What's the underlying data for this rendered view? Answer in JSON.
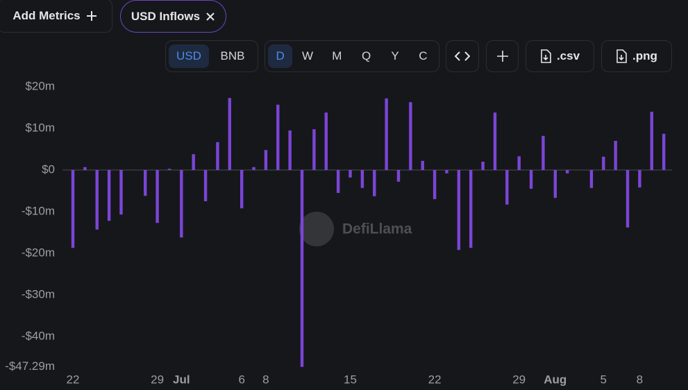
{
  "ui": {
    "add_metrics": "Add Metrics",
    "metric_tab": "USD Inflows",
    "denomination": [
      "USD",
      "BNB"
    ],
    "periods": [
      "D",
      "W",
      "M",
      "Q",
      "Y",
      "C"
    ],
    "downloads": [
      ".csv",
      ".png"
    ],
    "watermark": "DefiLlama"
  },
  "chart_data": {
    "type": "bar",
    "color": "#7b45d6",
    "categories": [
      "22",
      null,
      null,
      null,
      null,
      null,
      null,
      "29",
      null,
      "Jul",
      null,
      null,
      null,
      null,
      "6",
      null,
      "8",
      null,
      null,
      null,
      null,
      null,
      null,
      "15",
      null,
      null,
      null,
      null,
      null,
      null,
      "22",
      null,
      null,
      null,
      null,
      null,
      null,
      "29",
      null,
      null,
      "Aug",
      null,
      null,
      null,
      "5",
      null,
      null,
      "8",
      null,
      null
    ],
    "values": [
      -18.7,
      0.7,
      -14.3,
      -12.2,
      -10.7,
      0,
      -6.2,
      -12.7,
      0.3,
      -16.2,
      3.8,
      -7.5,
      6.7,
      17.3,
      -9.2,
      0.7,
      4.8,
      15.7,
      9.5,
      -47.29,
      9.8,
      13.8,
      -5.5,
      -1.8,
      -4.3,
      -6.3,
      17.2,
      -2.8,
      16.3,
      2.2,
      -7,
      -0.8,
      -19.2,
      -18.7,
      2,
      13.8,
      -8.3,
      3.3,
      -4.5,
      8.2,
      -6.7,
      -0.8,
      0,
      -4.3,
      3.2,
      7,
      -13.8,
      -4.2,
      14,
      8.7
    ],
    "ylim": [
      -47.29,
      21.5
    ],
    "yticks": [
      {
        "value": 20,
        "label": "$20m"
      },
      {
        "value": 10,
        "label": "$10m"
      },
      {
        "value": 0,
        "label": "$0"
      },
      {
        "value": -10,
        "label": "-$10m"
      },
      {
        "value": -20,
        "label": "-$20m"
      },
      {
        "value": -30,
        "label": "-$30m"
      },
      {
        "value": -40,
        "label": "-$40m"
      },
      {
        "value": -47.29,
        "label": "-$47.29m"
      }
    ]
  }
}
